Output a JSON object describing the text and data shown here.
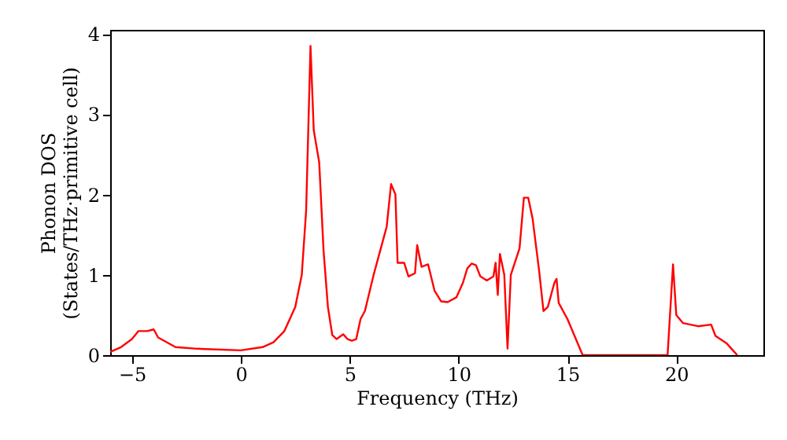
{
  "chart_data": {
    "type": "line",
    "xlabel": "Frequency (THz)",
    "ylabel": "Phonon DOS\n(States/THz·primitive cell)",
    "xlim": [
      -6,
      24
    ],
    "ylim": [
      0,
      4.05
    ],
    "xticks": [
      {
        "value": -5,
        "label": "−5"
      },
      0,
      5,
      10,
      15,
      20
    ],
    "yticks": [
      0,
      1,
      2,
      3,
      4
    ],
    "grid": false,
    "series": [
      {
        "color": "#ff0000",
        "x": [
          -6,
          -5.5,
          -5,
          -4.7,
          -4.3,
          -4.0,
          -3.8,
          -3.0,
          -2,
          0,
          1,
          1.5,
          2,
          2.5,
          2.8,
          3.0,
          3.2,
          3.35,
          3.6,
          3.8,
          4.0,
          4.2,
          4.4,
          4.7,
          4.9,
          5.1,
          5.3,
          5.5,
          5.7,
          6.1,
          6.5,
          6.7,
          6.9,
          7.1,
          7.2,
          7.5,
          7.7,
          8.0,
          8.1,
          8.3,
          8.6,
          8.9,
          9.2,
          9.5,
          9.9,
          10.2,
          10.4,
          10.6,
          10.8,
          11.0,
          11.3,
          11.6,
          11.7,
          11.8,
          11.9,
          12.1,
          12.25,
          12.4,
          12.8,
          13.0,
          13.2,
          13.4,
          13.7,
          13.9,
          14.1,
          14.4,
          14.5,
          14.6,
          15.0,
          15.7,
          19.6,
          19.85,
          20.0,
          20.3,
          21.0,
          21.6,
          21.8,
          22.3,
          22.6,
          22.8
        ],
        "values": [
          0.04,
          0.1,
          0.2,
          0.3,
          0.3,
          0.32,
          0.22,
          0.1,
          0.08,
          0.06,
          0.1,
          0.16,
          0.3,
          0.6,
          1.0,
          1.8,
          3.85,
          2.8,
          2.4,
          1.3,
          0.6,
          0.25,
          0.2,
          0.26,
          0.2,
          0.18,
          0.2,
          0.45,
          0.55,
          1.0,
          1.4,
          1.6,
          2.13,
          2.0,
          1.15,
          1.15,
          0.98,
          1.02,
          1.37,
          1.1,
          1.13,
          0.8,
          0.67,
          0.66,
          0.72,
          0.9,
          1.08,
          1.14,
          1.12,
          0.98,
          0.93,
          0.98,
          1.15,
          0.75,
          1.26,
          1.0,
          0.08,
          1.0,
          1.33,
          1.96,
          1.96,
          1.7,
          1.05,
          0.55,
          0.6,
          0.9,
          0.95,
          0.65,
          0.45,
          0.0,
          0.0,
          1.13,
          0.5,
          0.4,
          0.36,
          0.38,
          0.24,
          0.15,
          0.06,
          0.0
        ]
      }
    ]
  }
}
